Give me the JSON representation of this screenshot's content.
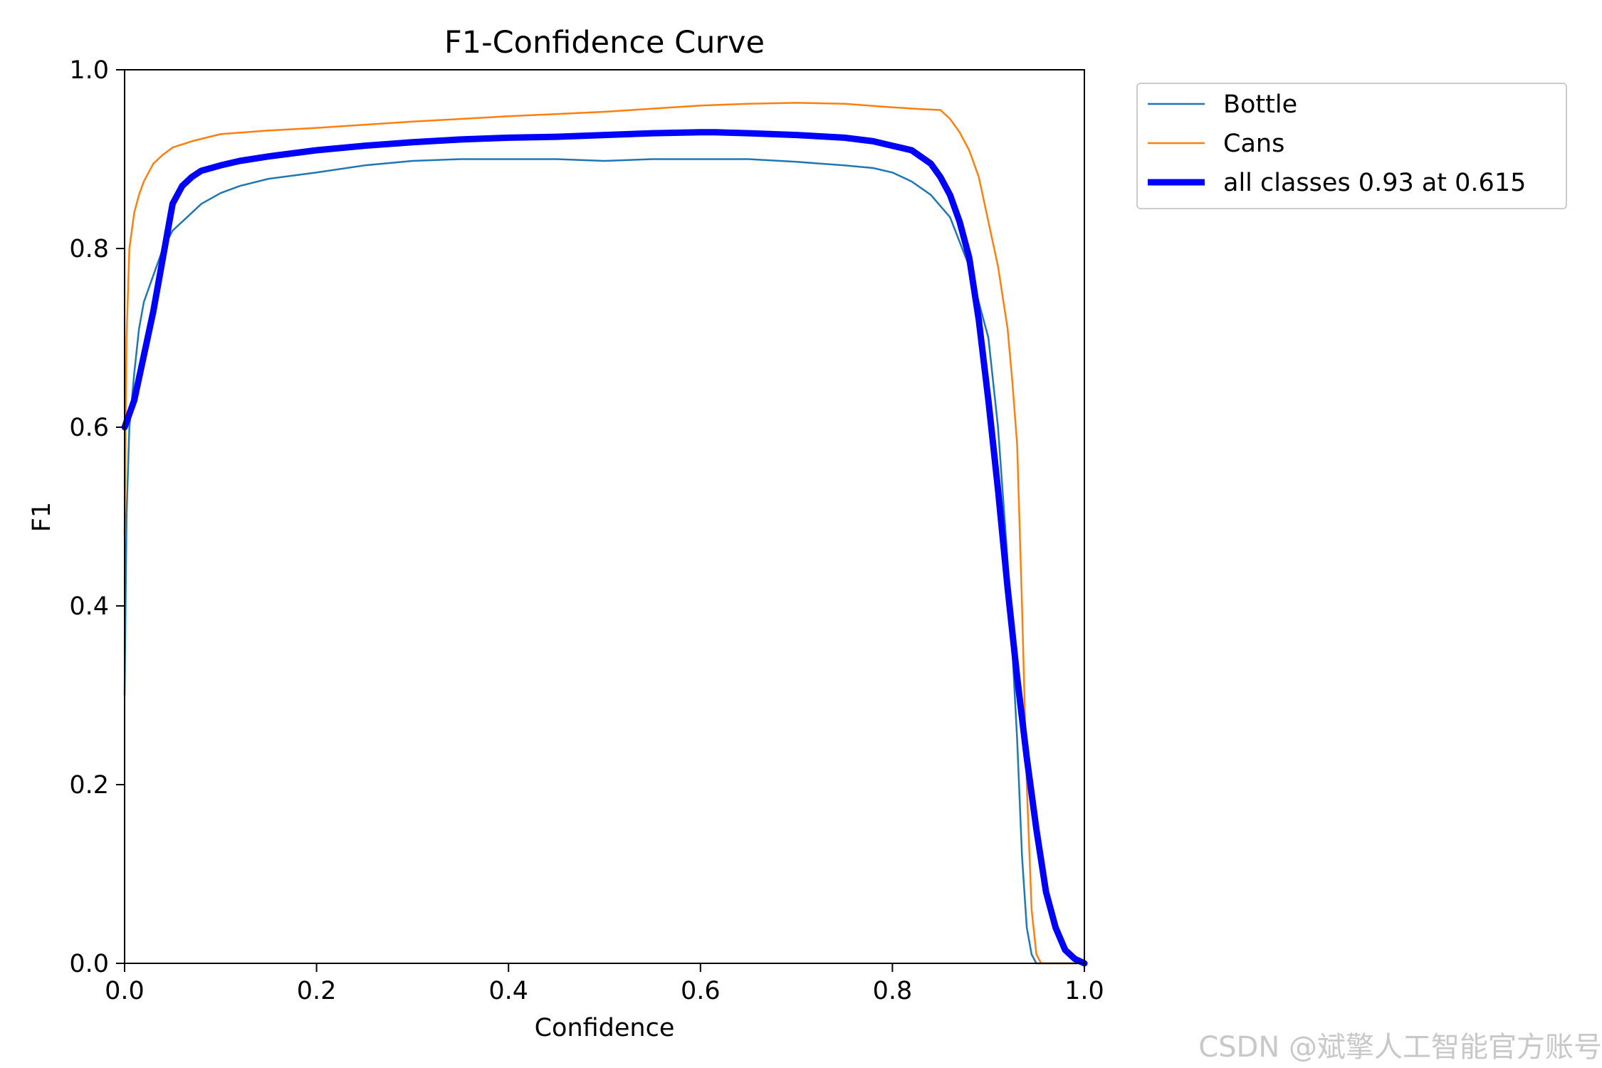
{
  "chart_data": {
    "type": "line",
    "title": "F1-Confidence Curve",
    "xlabel": "Confidence",
    "ylabel": "F1",
    "xlim": [
      0.0,
      1.0
    ],
    "ylim": [
      0.0,
      1.0
    ],
    "xticks": [
      "0.0",
      "0.2",
      "0.4",
      "0.6",
      "0.8",
      "1.0"
    ],
    "yticks": [
      "0.0",
      "0.2",
      "0.4",
      "0.6",
      "0.8",
      "1.0"
    ],
    "grid": false,
    "legend_position": "outside upper right",
    "series": [
      {
        "name": "Bottle",
        "color": "#1f77b4",
        "x": [
          0.0,
          0.002,
          0.005,
          0.01,
          0.015,
          0.02,
          0.03,
          0.04,
          0.05,
          0.06,
          0.08,
          0.1,
          0.12,
          0.15,
          0.2,
          0.25,
          0.3,
          0.35,
          0.4,
          0.45,
          0.5,
          0.55,
          0.6,
          0.65,
          0.7,
          0.75,
          0.78,
          0.8,
          0.82,
          0.84,
          0.86,
          0.88,
          0.89,
          0.9,
          0.91,
          0.92,
          0.93,
          0.935,
          0.94,
          0.945,
          0.95,
          0.955,
          0.96,
          1.0
        ],
        "y": [
          0.3,
          0.5,
          0.6,
          0.66,
          0.71,
          0.74,
          0.77,
          0.8,
          0.82,
          0.83,
          0.85,
          0.862,
          0.87,
          0.878,
          0.885,
          0.893,
          0.898,
          0.9,
          0.9,
          0.9,
          0.898,
          0.9,
          0.9,
          0.9,
          0.897,
          0.893,
          0.89,
          0.885,
          0.875,
          0.86,
          0.835,
          0.78,
          0.74,
          0.7,
          0.6,
          0.45,
          0.25,
          0.12,
          0.04,
          0.01,
          0.0,
          0.0,
          0.0,
          0.0
        ]
      },
      {
        "name": "Cans",
        "color": "#ff7f0e",
        "x": [
          0.0,
          0.002,
          0.005,
          0.01,
          0.015,
          0.02,
          0.025,
          0.03,
          0.04,
          0.05,
          0.07,
          0.1,
          0.15,
          0.2,
          0.3,
          0.4,
          0.5,
          0.6,
          0.65,
          0.7,
          0.75,
          0.8,
          0.83,
          0.85,
          0.86,
          0.87,
          0.88,
          0.89,
          0.9,
          0.91,
          0.92,
          0.925,
          0.93,
          0.935,
          0.94,
          0.945,
          0.95,
          0.955,
          0.96,
          1.0
        ],
        "y": [
          0.48,
          0.7,
          0.8,
          0.84,
          0.86,
          0.875,
          0.885,
          0.895,
          0.905,
          0.913,
          0.92,
          0.928,
          0.932,
          0.935,
          0.942,
          0.948,
          0.953,
          0.96,
          0.962,
          0.963,
          0.962,
          0.958,
          0.956,
          0.955,
          0.945,
          0.93,
          0.91,
          0.88,
          0.83,
          0.78,
          0.71,
          0.65,
          0.58,
          0.4,
          0.2,
          0.06,
          0.01,
          0.0,
          0.0,
          0.0
        ]
      },
      {
        "name": "all classes 0.93 at 0.615",
        "color": "#0000ff",
        "x": [
          0.0,
          0.01,
          0.02,
          0.03,
          0.04,
          0.05,
          0.06,
          0.07,
          0.08,
          0.1,
          0.12,
          0.15,
          0.2,
          0.25,
          0.3,
          0.35,
          0.4,
          0.45,
          0.5,
          0.55,
          0.6,
          0.615,
          0.65,
          0.7,
          0.75,
          0.78,
          0.8,
          0.82,
          0.84,
          0.85,
          0.86,
          0.87,
          0.88,
          0.89,
          0.9,
          0.91,
          0.92,
          0.93,
          0.94,
          0.95,
          0.96,
          0.97,
          0.98,
          0.99,
          1.0
        ],
        "y": [
          0.6,
          0.63,
          0.68,
          0.73,
          0.79,
          0.85,
          0.87,
          0.88,
          0.887,
          0.893,
          0.898,
          0.903,
          0.91,
          0.915,
          0.919,
          0.922,
          0.924,
          0.925,
          0.927,
          0.929,
          0.93,
          0.93,
          0.929,
          0.927,
          0.924,
          0.92,
          0.915,
          0.91,
          0.895,
          0.88,
          0.86,
          0.83,
          0.79,
          0.72,
          0.63,
          0.53,
          0.42,
          0.32,
          0.23,
          0.15,
          0.08,
          0.04,
          0.015,
          0.005,
          0.0
        ]
      }
    ]
  },
  "watermark": "CSDN @斌擎人工智能官方账号"
}
